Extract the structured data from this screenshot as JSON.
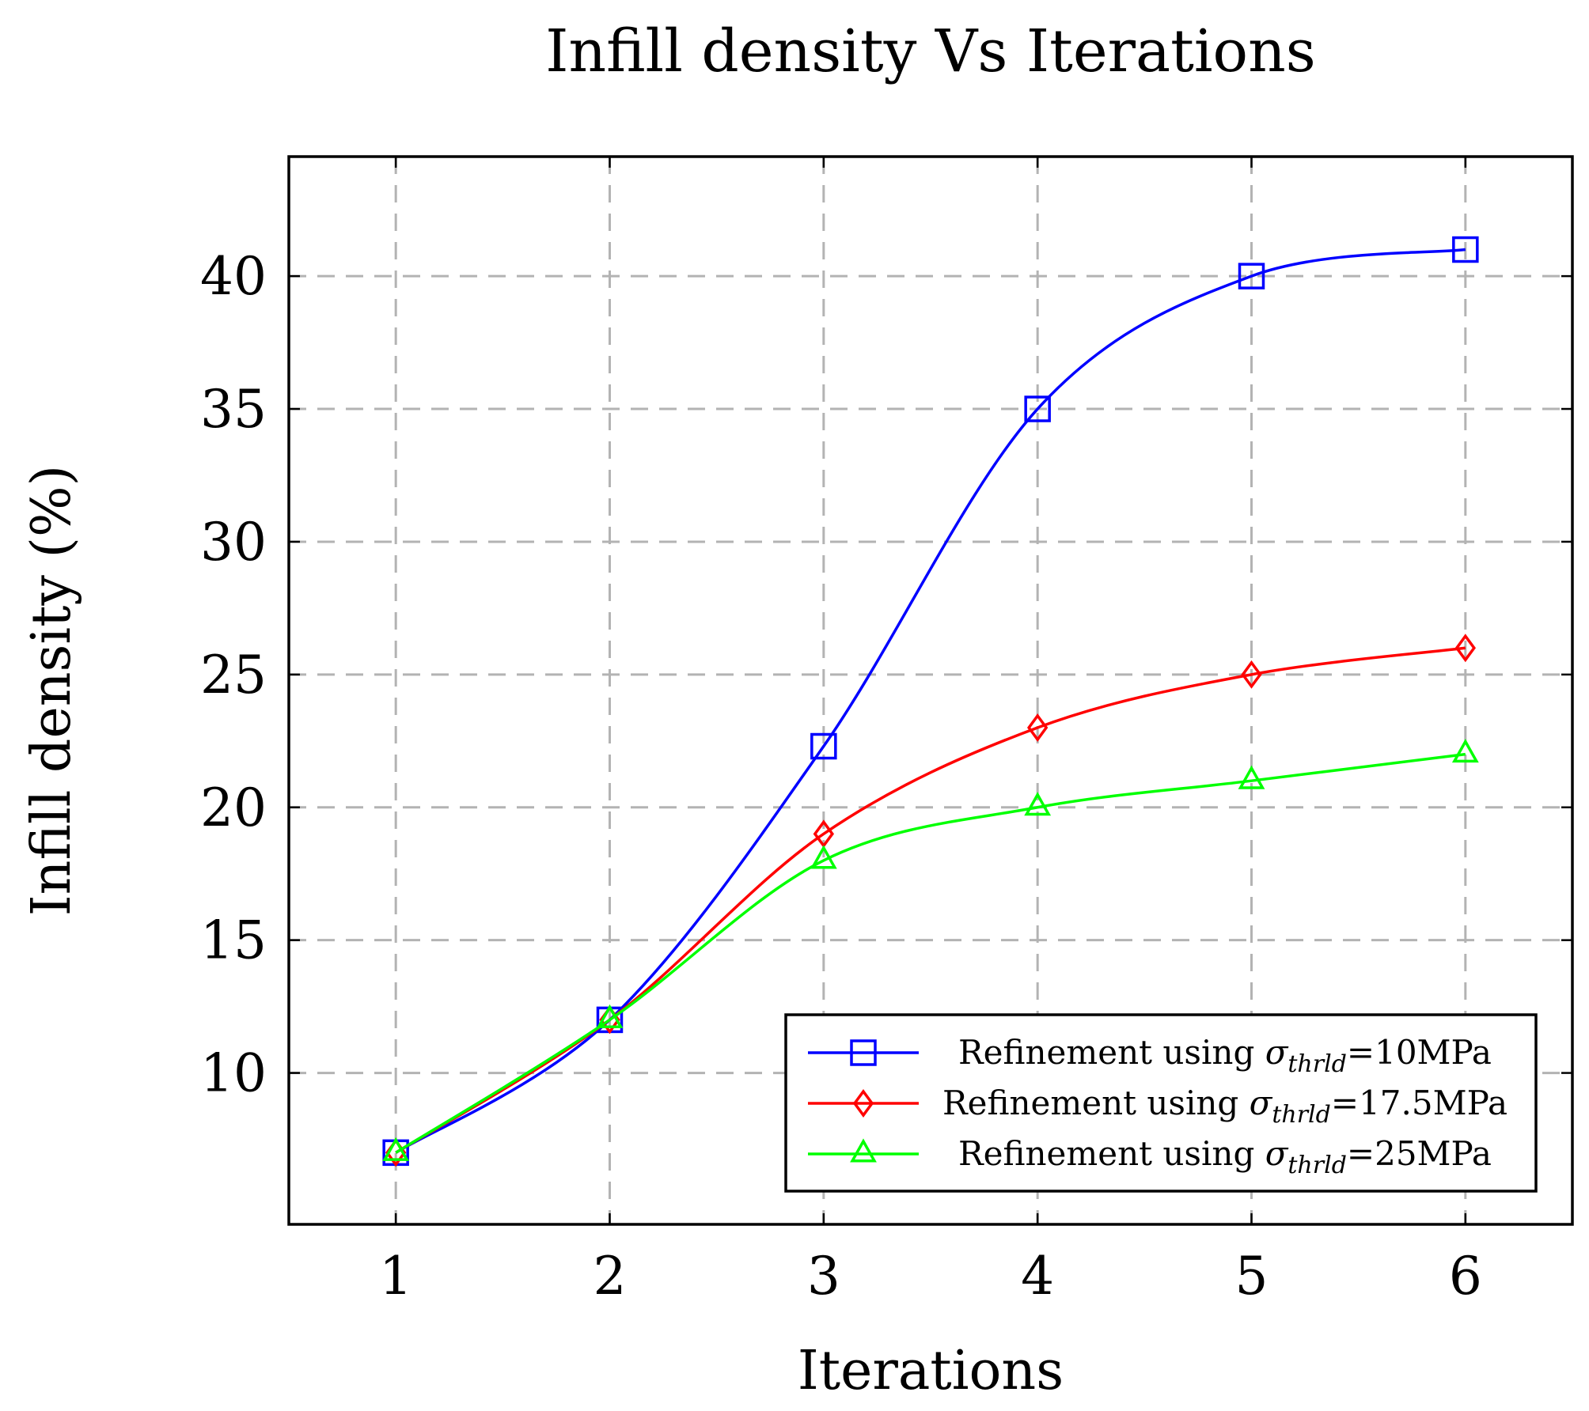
{
  "chart_data": {
    "type": "line",
    "title": "Infill density Vs Iterations",
    "xlabel": "Iterations",
    "ylabel": "Infill density (%)",
    "x": [
      1,
      2,
      3,
      4,
      5,
      6
    ],
    "xlim": [
      0.5,
      6.5
    ],
    "ylim": [
      4.3,
      44.5
    ],
    "xticks": [
      1,
      2,
      3,
      4,
      5,
      6
    ],
    "yticks": [
      10,
      15,
      20,
      25,
      30,
      35,
      40
    ],
    "grid": true,
    "smooth": true,
    "legend_position": "bottom-right",
    "series": [
      {
        "name": "Refinement using σthrld=10MPa",
        "legend_prefix": "Refinement using ",
        "legend_symbol": "σ",
        "legend_subscript": "thrld",
        "legend_suffix": "=10MPa",
        "color": "#0000ff",
        "marker": "square",
        "values": [
          7,
          12,
          22.3,
          35,
          40,
          41
        ]
      },
      {
        "name": "Refinement using σthrld=17.5MPa",
        "legend_prefix": "Refinement using ",
        "legend_symbol": "σ",
        "legend_subscript": "thrld",
        "legend_suffix": "=17.5MPa",
        "color": "#ff0000",
        "marker": "diamond",
        "values": [
          7,
          12,
          19,
          23,
          25,
          26
        ]
      },
      {
        "name": "Refinement using σthrld=25MPa",
        "legend_prefix": "Refinement using ",
        "legend_symbol": "σ",
        "legend_subscript": "thrld",
        "legend_suffix": "=25MPa",
        "color": "#00ff00",
        "marker": "triangle",
        "values": [
          7,
          12,
          18,
          20,
          21,
          22
        ]
      }
    ]
  }
}
